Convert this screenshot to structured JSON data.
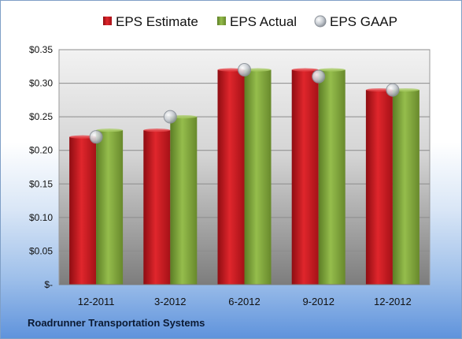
{
  "company_name": "Roadrunner Transportation Systems",
  "chart_data": {
    "type": "bar",
    "categories": [
      "12-2011",
      "3-2012",
      "6-2012",
      "9-2012",
      "12-2012"
    ],
    "series": [
      {
        "name": "EPS Estimate",
        "type": "bar",
        "values": [
          0.22,
          0.23,
          0.32,
          0.32,
          0.29
        ],
        "color": "#c8181e"
      },
      {
        "name": "EPS Actual",
        "type": "bar",
        "values": [
          0.23,
          0.25,
          0.32,
          0.32,
          0.29
        ],
        "color": "#7da23a"
      },
      {
        "name": "EPS GAAP",
        "type": "scatter",
        "values": [
          0.22,
          0.25,
          0.32,
          0.31,
          0.29
        ],
        "color": "#b8bec6"
      }
    ],
    "ylim": [
      0,
      0.35
    ],
    "yticks": [
      0,
      0.05,
      0.1,
      0.15,
      0.2,
      0.25,
      0.3,
      0.35
    ],
    "ytick_labels": [
      "$-",
      "$0.05",
      "$0.10",
      "$0.15",
      "$0.20",
      "$0.25",
      "$0.30",
      "$0.35"
    ],
    "grid": true,
    "legend_position": "top"
  }
}
